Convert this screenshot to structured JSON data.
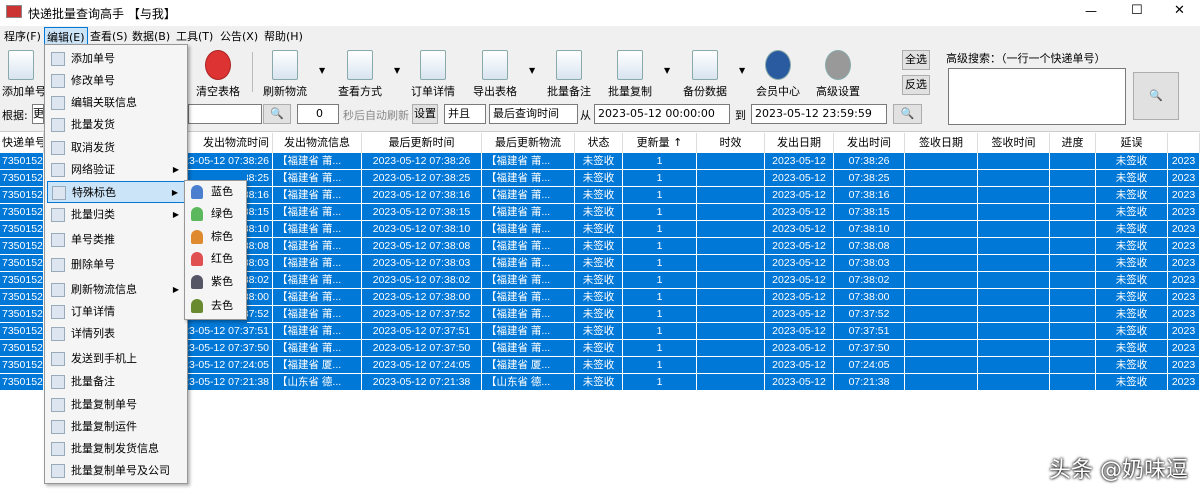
{
  "window": {
    "title": "快递批量查询高手 【与我】",
    "minimize": "—",
    "maximize": "☐",
    "close": "✕"
  },
  "menubar": [
    "程序(F)",
    "编辑(E)",
    "查看(S)",
    "数据(B)",
    "工具(T)",
    "公告(X)",
    "帮助(H)"
  ],
  "toolbar": {
    "buttons": [
      {
        "label": "添加单号",
        "icon": "document-icon"
      },
      {
        "label": "清空表格",
        "icon": "red-x-icon"
      },
      {
        "label": "刷新物流",
        "icon": "refresh-doc-icon",
        "dropdown": true
      },
      {
        "label": "查看方式",
        "icon": "checklist-icon",
        "dropdown": true
      },
      {
        "label": "订单详情",
        "icon": "table-icon"
      },
      {
        "label": "导出表格",
        "icon": "export-icon",
        "dropdown": true
      },
      {
        "label": "批量备注",
        "icon": "scroll-icon"
      },
      {
        "label": "批量复制",
        "icon": "copy-icon",
        "dropdown": true
      },
      {
        "label": "备份数据",
        "icon": "floppy-icon",
        "dropdown": true
      },
      {
        "label": "会员中心",
        "icon": "clock-icon"
      },
      {
        "label": "高级设置",
        "icon": "gear-icon"
      }
    ],
    "select_all": "全选",
    "invert": "反选",
    "adv_search_label": "高级搜索：（一行一个快递单号）"
  },
  "filter": {
    "by_label": "根据:",
    "by_value": "更",
    "refresh_seconds": "0",
    "refresh_label": "秒后自动刷新",
    "set_label": "设置",
    "logic": "并且",
    "field": "最后查询时间",
    "from_label": "从",
    "from": "2023-05-12 00:00:00",
    "to_label": "到",
    "to": "2023-05-12 23:59:59"
  },
  "table": {
    "headers": [
      "快递单号",
      "",
      "发出物流时间",
      "发出物流信息",
      "最后更新时间",
      "最后更新物流",
      "状态",
      "更新量 ↑",
      "时效",
      "发出日期",
      "发出时间",
      "签收日期",
      "签收时间",
      "进度",
      "延误",
      ""
    ],
    "rows": [
      [
        "7350152",
        "",
        "2023-05-12 07:38:26",
        "【福建省 莆...",
        "2023-05-12 07:38:26",
        "【福建省 莆...",
        "未签收",
        "1",
        "",
        "2023-05-12",
        "07:38:26",
        "",
        "",
        "",
        "未签收",
        "2023"
      ],
      [
        "7350152",
        "",
        "2023-05-12 07:38:25",
        "【福建省 莆...",
        "2023-05-12 07:38:25",
        "【福建省 莆...",
        "未签收",
        "1",
        "",
        "2023-05-12",
        "07:38:25",
        "",
        "",
        "",
        "未签收",
        "2023"
      ],
      [
        "7350152",
        "",
        "2023-05-12 07:38:16",
        "【福建省 莆...",
        "2023-05-12 07:38:16",
        "【福建省 莆...",
        "未签收",
        "1",
        "",
        "2023-05-12",
        "07:38:16",
        "",
        "",
        "",
        "未签收",
        "2023"
      ],
      [
        "7350152",
        "",
        "2023-05-12 07:38:15",
        "【福建省 莆...",
        "2023-05-12 07:38:15",
        "【福建省 莆...",
        "未签收",
        "1",
        "",
        "2023-05-12",
        "07:38:15",
        "",
        "",
        "",
        "未签收",
        "2023"
      ],
      [
        "7350152",
        "",
        "2023-05-12 07:38:10",
        "【福建省 莆...",
        "2023-05-12 07:38:10",
        "【福建省 莆...",
        "未签收",
        "1",
        "",
        "2023-05-12",
        "07:38:10",
        "",
        "",
        "",
        "未签收",
        "2023"
      ],
      [
        "7350152",
        "",
        "2023-05-12 07:38:08",
        "【福建省 莆...",
        "2023-05-12 07:38:08",
        "【福建省 莆...",
        "未签收",
        "1",
        "",
        "2023-05-12",
        "07:38:08",
        "",
        "",
        "",
        "未签收",
        "2023"
      ],
      [
        "7350152",
        "",
        "2023-05-12 07:38:03",
        "【福建省 莆...",
        "2023-05-12 07:38:03",
        "【福建省 莆...",
        "未签收",
        "1",
        "",
        "2023-05-12",
        "07:38:03",
        "",
        "",
        "",
        "未签收",
        "2023"
      ],
      [
        "7350152",
        "",
        "2023-05-12 07:38:02",
        "【福建省 莆...",
        "2023-05-12 07:38:02",
        "【福建省 莆...",
        "未签收",
        "1",
        "",
        "2023-05-12",
        "07:38:02",
        "",
        "",
        "",
        "未签收",
        "2023"
      ],
      [
        "7350152",
        "",
        "2023-05-12 07:38:00",
        "【福建省 莆...",
        "2023-05-12 07:38:00",
        "【福建省 莆...",
        "未签收",
        "1",
        "",
        "2023-05-12",
        "07:38:00",
        "",
        "",
        "",
        "未签收",
        "2023"
      ],
      [
        "7350152",
        "",
        "2023-05-12 07:37:52",
        "【福建省 莆...",
        "2023-05-12 07:37:52",
        "【福建省 莆...",
        "未签收",
        "1",
        "",
        "2023-05-12",
        "07:37:52",
        "",
        "",
        "",
        "未签收",
        "2023"
      ],
      [
        "7350152",
        "",
        "2023-05-12 07:37:51",
        "【福建省 莆...",
        "2023-05-12 07:37:51",
        "【福建省 莆...",
        "未签收",
        "1",
        "",
        "2023-05-12",
        "07:37:51",
        "",
        "",
        "",
        "未签收",
        "2023"
      ],
      [
        "7350152",
        "",
        "2023-05-12 07:37:50",
        "【福建省 莆...",
        "2023-05-12 07:37:50",
        "【福建省 莆...",
        "未签收",
        "1",
        "",
        "2023-05-12",
        "07:37:50",
        "",
        "",
        "",
        "未签收",
        "2023"
      ],
      [
        "7350152",
        "",
        "2023-05-12 07:24:05",
        "【福建省 厦...",
        "2023-05-12 07:24:05",
        "【福建省 厦...",
        "未签收",
        "1",
        "",
        "2023-05-12",
        "07:24:05",
        "",
        "",
        "",
        "未签收",
        "2023"
      ],
      [
        "7350152",
        "",
        "2023-05-12 07:21:38",
        "【山东省 德...",
        "2023-05-12 07:21:38",
        "【山东省 德...",
        "未签收",
        "1",
        "",
        "2023-05-12",
        "07:21:38",
        "",
        "",
        "",
        "未签收",
        "2023"
      ]
    ]
  },
  "edit_menu": [
    {
      "label": "添加单号",
      "icon": "blank-doc-icon"
    },
    {
      "label": "修改单号",
      "icon": "folder-icon"
    },
    {
      "label": "编辑关联信息",
      "icon": "edit-icon"
    },
    {
      "label": "批量发货",
      "icon": "box-icon"
    },
    {
      "label": "取消发货",
      "icon": "cancel-icon"
    },
    {
      "label": "网络验证",
      "icon": "globe-icon",
      "submenu": true
    },
    {
      "label": "特殊标色",
      "icon": "color-icon",
      "submenu": true,
      "highlighted": true
    },
    {
      "label": "批量归类",
      "icon": "clip-icon",
      "submenu": true
    },
    {
      "label": "单号类推",
      "icon": "car-icon"
    },
    {
      "label": "删除单号",
      "icon": "delete-x-icon"
    },
    {
      "label": "刷新物流信息",
      "icon": "refresh-icon",
      "submenu": true
    },
    {
      "label": "订单详情",
      "icon": "star-icon"
    },
    {
      "label": "详情列表",
      "icon": "list-icon"
    },
    {
      "label": "发送到手机上",
      "icon": "phone-icon"
    },
    {
      "label": "批量备注",
      "icon": "note-icon"
    },
    {
      "label": "批量复制单号",
      "icon": "copy-icon"
    },
    {
      "label": "批量复制运件",
      "icon": "copy-icon"
    },
    {
      "label": "批量复制发货信息",
      "icon": "copy-icon"
    },
    {
      "label": "批量复制单号及公司",
      "icon": "copy-icon"
    }
  ],
  "color_submenu": [
    {
      "label": "蓝色",
      "color": "#4a7fd0"
    },
    {
      "label": "绿色",
      "color": "#5cb85c"
    },
    {
      "label": "棕色",
      "color": "#e08a30"
    },
    {
      "label": "红色",
      "color": "#e05050"
    },
    {
      "label": "紫色",
      "color": "#555566"
    },
    {
      "label": "去色",
      "color": "#6a8a30"
    }
  ],
  "colors": {
    "selection": "#0078d7",
    "menu_highlight": "#cce4f7"
  },
  "watermark": "头条 @奶味逗"
}
